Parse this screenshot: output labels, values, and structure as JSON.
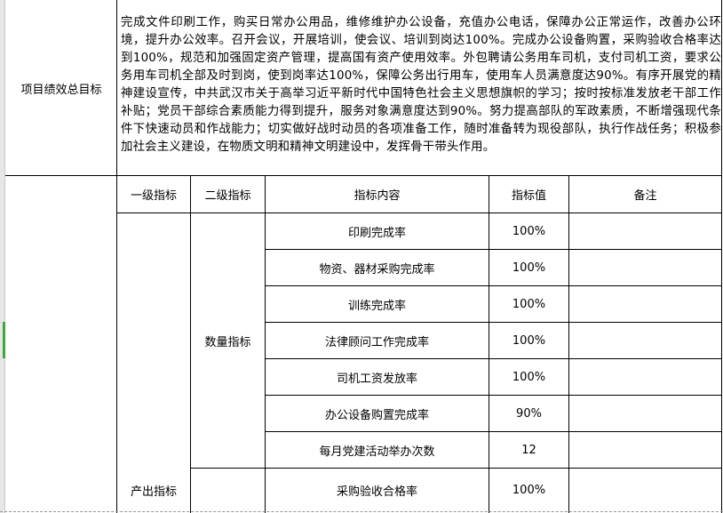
{
  "summary": {
    "label": "项目绩效总目标",
    "text": "完成文件印刷工作，购买日常办公用品，维修维护办公设备，充值办公电话，保障办公正常运作，改善办公环境，提升办公效率。召开会议，开展培训，使会议、培训到岗达100%。完成办公设备购置，采购验收合格率达到100%，规范和加强固定资产管理，提高国有资产使用效率。外包聘请公务用车司机，支付司机工资，要求公务用车司机全部及时到岗，使到岗率达100%，保障公务出行用车，使用车人员满意度达90%。有序开展党的精神建设宣传，中共武汉市关于高举习近平新时代中国特色社会主义思想旗帜的学习；按时按标准发放老干部工作补贴；党员干部综合素质能力得到提升，服务对象满意度达到90%。努力提高部队的军政素质，不断增强现代条件下快速动员和作战能力；切实做好战时动员的各项准备工作，随时准备转为现役部队，执行作战任务；积极参加社会主义建设，在物质文明和精神文明建设中，发挥骨干带头作用。"
  },
  "headers": [
    "一级指标",
    "二级指标",
    "指标内容",
    "指标值",
    "备注"
  ],
  "level1": "产出指标",
  "level2": "数量指标",
  "rows": [
    {
      "content": "印刷完成率",
      "value": "100%",
      "note": ""
    },
    {
      "content": "物资、器材采购完成率",
      "value": "100%",
      "note": ""
    },
    {
      "content": "训练完成率",
      "value": "100%",
      "note": ""
    },
    {
      "content": "法律顾问工作完成率",
      "value": "100%",
      "note": ""
    },
    {
      "content": "司机工资发放率",
      "value": "100%",
      "note": ""
    },
    {
      "content": "办公设备购置完成率",
      "value": "90%",
      "note": ""
    },
    {
      "content": "每月党建活动举办次数",
      "value": "12",
      "note": ""
    },
    {
      "content": "采购验收合格率",
      "value": "100%",
      "note": ""
    }
  ]
}
